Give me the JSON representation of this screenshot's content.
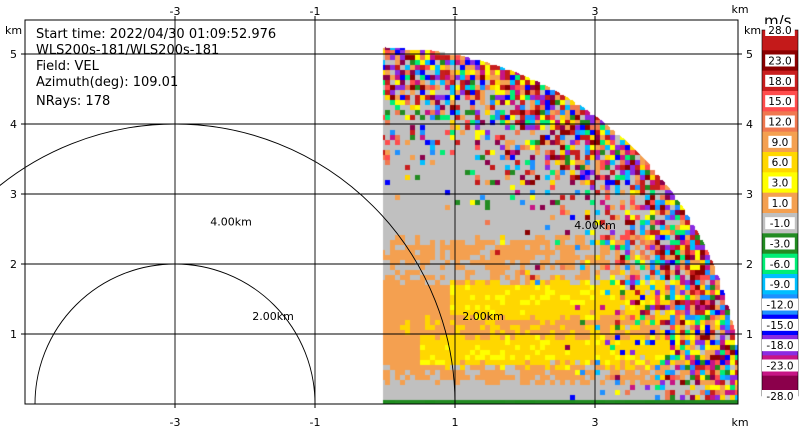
{
  "chart_data": {
    "type": "heatmap",
    "plot": "radar PPI velocity sector",
    "info": {
      "start_time": "Start time: 2022/04/30 01:09:52.976",
      "instrument": "WLS200s-181/WLS200s-181",
      "field": "Field: VEL",
      "azimuth": "Azimuth(deg): 109.01",
      "nrays": "NRays: 178"
    },
    "x_axis": {
      "ticks": [
        "-3",
        "-1",
        "1",
        "3"
      ],
      "unit": "km",
      "range": [
        -5.8,
        5.0
      ]
    },
    "y_axis": {
      "ticks": [
        "1",
        "2",
        "3",
        "4",
        "5"
      ],
      "unit": "km",
      "range": [
        0,
        6.0
      ]
    },
    "range_rings": [
      "2.00km",
      "4.00km"
    ],
    "ring_labels": [
      {
        "text": "4.00km",
        "ring": 4
      },
      {
        "text": "2.00km",
        "ring": 2
      },
      {
        "text": "2.00km",
        "ring": 2
      },
      {
        "text": "4.00km",
        "ring": 4
      }
    ],
    "sector": {
      "min_range_km": 0,
      "max_range_km": 5.1,
      "azimuth_start_deg": 0,
      "azimuth_end_deg": 90
    },
    "colorbar": {
      "unit": "m/s",
      "labels": [
        "28.0",
        "23.0",
        "18.0",
        "15.0",
        "12.0",
        "9.0",
        "6.0",
        "3.0",
        "1.0",
        "-1.0",
        "-3.0",
        "-6.0",
        "-9.0",
        "-12.0",
        "-15.0",
        "-18.0",
        "-23.0",
        "-28.0"
      ],
      "colors": [
        "#c41a1a",
        "#8b0000",
        "#c81e1e",
        "#ff4d4d",
        "#f07850",
        "#f4a050",
        "#ffd700",
        "#ffff00",
        "#f4a050",
        "#c0c0c0",
        "#228b22",
        "#00ee76",
        "#00bfff",
        "#1e90ff",
        "#0000ff",
        "#8a2be2",
        "#c71585",
        "#8b004b"
      ]
    }
  }
}
